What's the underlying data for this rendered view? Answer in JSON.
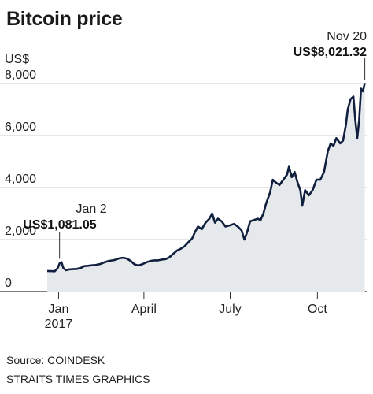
{
  "chart_data": {
    "type": "area",
    "title": "Bitcoin price",
    "ylabel": "US$",
    "ylim": [
      0,
      8000
    ],
    "yticks": [
      0,
      2000,
      4000,
      6000,
      8000
    ],
    "ytick_labels": [
      "0",
      "2,000",
      "4,000",
      "6,000",
      "8,000"
    ],
    "xlim": [
      "2016-12-20",
      "2017-11-22"
    ],
    "xticks": [
      {
        "date": "2017-01-01",
        "label": "Jan",
        "sublabel": "2017"
      },
      {
        "date": "2017-04-01",
        "label": "April",
        "sublabel": ""
      },
      {
        "date": "2017-07-01",
        "label": "July",
        "sublabel": ""
      },
      {
        "date": "2017-10-01",
        "label": "Oct",
        "sublabel": ""
      }
    ],
    "annotations": [
      {
        "date": "2017-01-02",
        "value": 1081.05,
        "label": "Jan 2",
        "value_label": "US$1,081.05"
      },
      {
        "date": "2017-11-20",
        "value": 8021.32,
        "label": "Nov 20",
        "value_label": "US$8,021.32"
      }
    ],
    "grid": true,
    "series": [
      {
        "values": [
          [
            "2016-12-20",
            790
          ],
          [
            "2016-12-24",
            785
          ],
          [
            "2016-12-28",
            780
          ],
          [
            "2016-12-31",
            900
          ],
          [
            "2017-01-02",
            1081.05
          ],
          [
            "2017-01-04",
            1130
          ],
          [
            "2017-01-06",
            900
          ],
          [
            "2017-01-09",
            820
          ],
          [
            "2017-01-12",
            850
          ],
          [
            "2017-01-16",
            860
          ],
          [
            "2017-01-20",
            870
          ],
          [
            "2017-01-24",
            900
          ],
          [
            "2017-01-28",
            980
          ],
          [
            "2017-02-01",
            990
          ],
          [
            "2017-02-05",
            1010
          ],
          [
            "2017-02-09",
            1020
          ],
          [
            "2017-02-14",
            1060
          ],
          [
            "2017-02-18",
            1120
          ],
          [
            "2017-02-23",
            1180
          ],
          [
            "2017-02-27",
            1200
          ],
          [
            "2017-03-02",
            1220
          ],
          [
            "2017-03-06",
            1280
          ],
          [
            "2017-03-10",
            1300
          ],
          [
            "2017-03-14",
            1270
          ],
          [
            "2017-03-18",
            1180
          ],
          [
            "2017-03-22",
            1050
          ],
          [
            "2017-03-26",
            1000
          ],
          [
            "2017-03-30",
            1050
          ],
          [
            "2017-04-04",
            1130
          ],
          [
            "2017-04-08",
            1180
          ],
          [
            "2017-04-12",
            1200
          ],
          [
            "2017-04-16",
            1200
          ],
          [
            "2017-04-20",
            1230
          ],
          [
            "2017-04-24",
            1250
          ],
          [
            "2017-04-28",
            1320
          ],
          [
            "2017-05-02",
            1450
          ],
          [
            "2017-05-06",
            1580
          ],
          [
            "2017-05-10",
            1650
          ],
          [
            "2017-05-14",
            1750
          ],
          [
            "2017-05-18",
            1900
          ],
          [
            "2017-05-22",
            2050
          ],
          [
            "2017-05-25",
            2300
          ],
          [
            "2017-05-28",
            2500
          ],
          [
            "2017-06-01",
            2400
          ],
          [
            "2017-06-05",
            2650
          ],
          [
            "2017-06-09",
            2800
          ],
          [
            "2017-06-12",
            3000
          ],
          [
            "2017-06-15",
            2650
          ],
          [
            "2017-06-18",
            2800
          ],
          [
            "2017-06-22",
            2700
          ],
          [
            "2017-06-26",
            2500
          ],
          [
            "2017-07-01",
            2550
          ],
          [
            "2017-07-05",
            2600
          ],
          [
            "2017-07-09",
            2500
          ],
          [
            "2017-07-13",
            2350
          ],
          [
            "2017-07-16",
            2000
          ],
          [
            "2017-07-19",
            2300
          ],
          [
            "2017-07-22",
            2700
          ],
          [
            "2017-07-26",
            2750
          ],
          [
            "2017-07-30",
            2800
          ],
          [
            "2017-08-02",
            2750
          ],
          [
            "2017-08-05",
            3000
          ],
          [
            "2017-08-08",
            3400
          ],
          [
            "2017-08-12",
            3800
          ],
          [
            "2017-08-15",
            4300
          ],
          [
            "2017-08-18",
            4200
          ],
          [
            "2017-08-22",
            4100
          ],
          [
            "2017-08-26",
            4300
          ],
          [
            "2017-08-30",
            4500
          ],
          [
            "2017-09-01",
            4800
          ],
          [
            "2017-09-04",
            4400
          ],
          [
            "2017-09-07",
            4600
          ],
          [
            "2017-09-10",
            4200
          ],
          [
            "2017-09-13",
            3900
          ],
          [
            "2017-09-15",
            3300
          ],
          [
            "2017-09-18",
            3900
          ],
          [
            "2017-09-22",
            3700
          ],
          [
            "2017-09-26",
            3900
          ],
          [
            "2017-09-30",
            4300
          ],
          [
            "2017-10-04",
            4300
          ],
          [
            "2017-10-08",
            4600
          ],
          [
            "2017-10-12",
            5400
          ],
          [
            "2017-10-15",
            5700
          ],
          [
            "2017-10-18",
            5600
          ],
          [
            "2017-10-21",
            5900
          ],
          [
            "2017-10-25",
            5700
          ],
          [
            "2017-10-28",
            5800
          ],
          [
            "2017-10-31",
            6400
          ],
          [
            "2017-11-02",
            7000
          ],
          [
            "2017-11-05",
            7400
          ],
          [
            "2017-11-08",
            7500
          ],
          [
            "2017-11-10",
            6600
          ],
          [
            "2017-11-12",
            5900
          ],
          [
            "2017-11-14",
            6600
          ],
          [
            "2017-11-16",
            7800
          ],
          [
            "2017-11-18",
            7700
          ],
          [
            "2017-11-20",
            8021.32
          ]
        ]
      }
    ]
  },
  "footer": {
    "source": "Source: COINDESK",
    "credit": "STRAITS TIMES GRAPHICS"
  },
  "colors": {
    "line": "#0f1f3d",
    "fill": "#e6e9ec",
    "grid": "#c9ccd0",
    "axis": "#333333"
  }
}
